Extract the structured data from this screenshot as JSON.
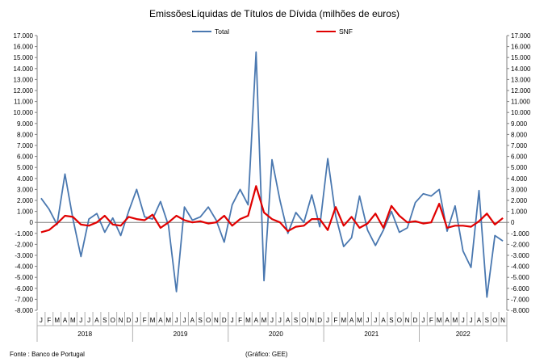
{
  "chart_data": {
    "type": "line",
    "title": "EmissõesLíquidas de Títulos de Dívida (milhões de euros)",
    "xlabel": "",
    "ylabel": "",
    "ylim": [
      -8000,
      17000
    ],
    "y_ticks": [
      17000,
      16000,
      15000,
      14000,
      13000,
      12000,
      11000,
      10000,
      9000,
      8000,
      7000,
      6000,
      5000,
      4000,
      3000,
      2000,
      1000,
      0,
      -1000,
      -2000,
      -3000,
      -4000,
      -5000,
      -6000,
      -7000,
      -8000
    ],
    "y_tick_labels": [
      "17.000",
      "16.000",
      "15.000",
      "14.000",
      "13.000",
      "12.000",
      "11.000",
      "10.000",
      "9.000",
      "8.000",
      "7.000",
      "6.000",
      "5.000",
      "4.000",
      "3.000",
      "2.000",
      "1.000",
      "0",
      "-1.000",
      "-2.000",
      "-3.000",
      "-4.000",
      "-5.000",
      "-6.000",
      "-7.000",
      "-8.000"
    ],
    "month_labels": [
      "J",
      "F",
      "M",
      "A",
      "M",
      "J",
      "J",
      "A",
      "S",
      "O",
      "N",
      "D"
    ],
    "years": [
      "2018",
      "2019",
      "2020",
      "2021",
      "2022"
    ],
    "legend_position": "top",
    "grid": false,
    "series": [
      {
        "name": "Total",
        "color": "#4a78b0",
        "values": [
          2200,
          1200,
          -200,
          4400,
          300,
          -3100,
          300,
          800,
          -900,
          400,
          -1200,
          1000,
          3000,
          500,
          300,
          1900,
          -300,
          -6300,
          1400,
          200,
          500,
          1400,
          200,
          -1800,
          1600,
          3000,
          1600,
          15500,
          -5300,
          5700,
          2000,
          -1000,
          900,
          0,
          2500,
          -400,
          5800,
          600,
          -2200,
          -1400,
          2400,
          -700,
          -2100,
          -700,
          1000,
          -900,
          -500,
          1800,
          2600,
          2400,
          3000,
          -800,
          1500,
          -2600,
          -4100,
          2900,
          -6800,
          -1200,
          -1700
        ]
      },
      {
        "name": "SNF",
        "color": "#e00000",
        "values": [
          -900,
          -700,
          -100,
          600,
          500,
          -200,
          -300,
          0,
          600,
          -200,
          -300,
          500,
          300,
          200,
          700,
          -500,
          0,
          600,
          200,
          0,
          100,
          -100,
          0,
          600,
          -300,
          300,
          600,
          3300,
          900,
          300,
          0,
          -800,
          -400,
          -300,
          300,
          300,
          -700,
          1400,
          -300,
          500,
          -500,
          -100,
          800,
          -500,
          1500,
          600,
          0,
          100,
          -100,
          0,
          1700,
          -500,
          -300,
          -300,
          -400,
          100,
          800,
          -200,
          400
        ]
      }
    ]
  },
  "footer": {
    "source": "Fonte : Banco de Portugal",
    "credit": "(Gráfico: GEE)"
  }
}
